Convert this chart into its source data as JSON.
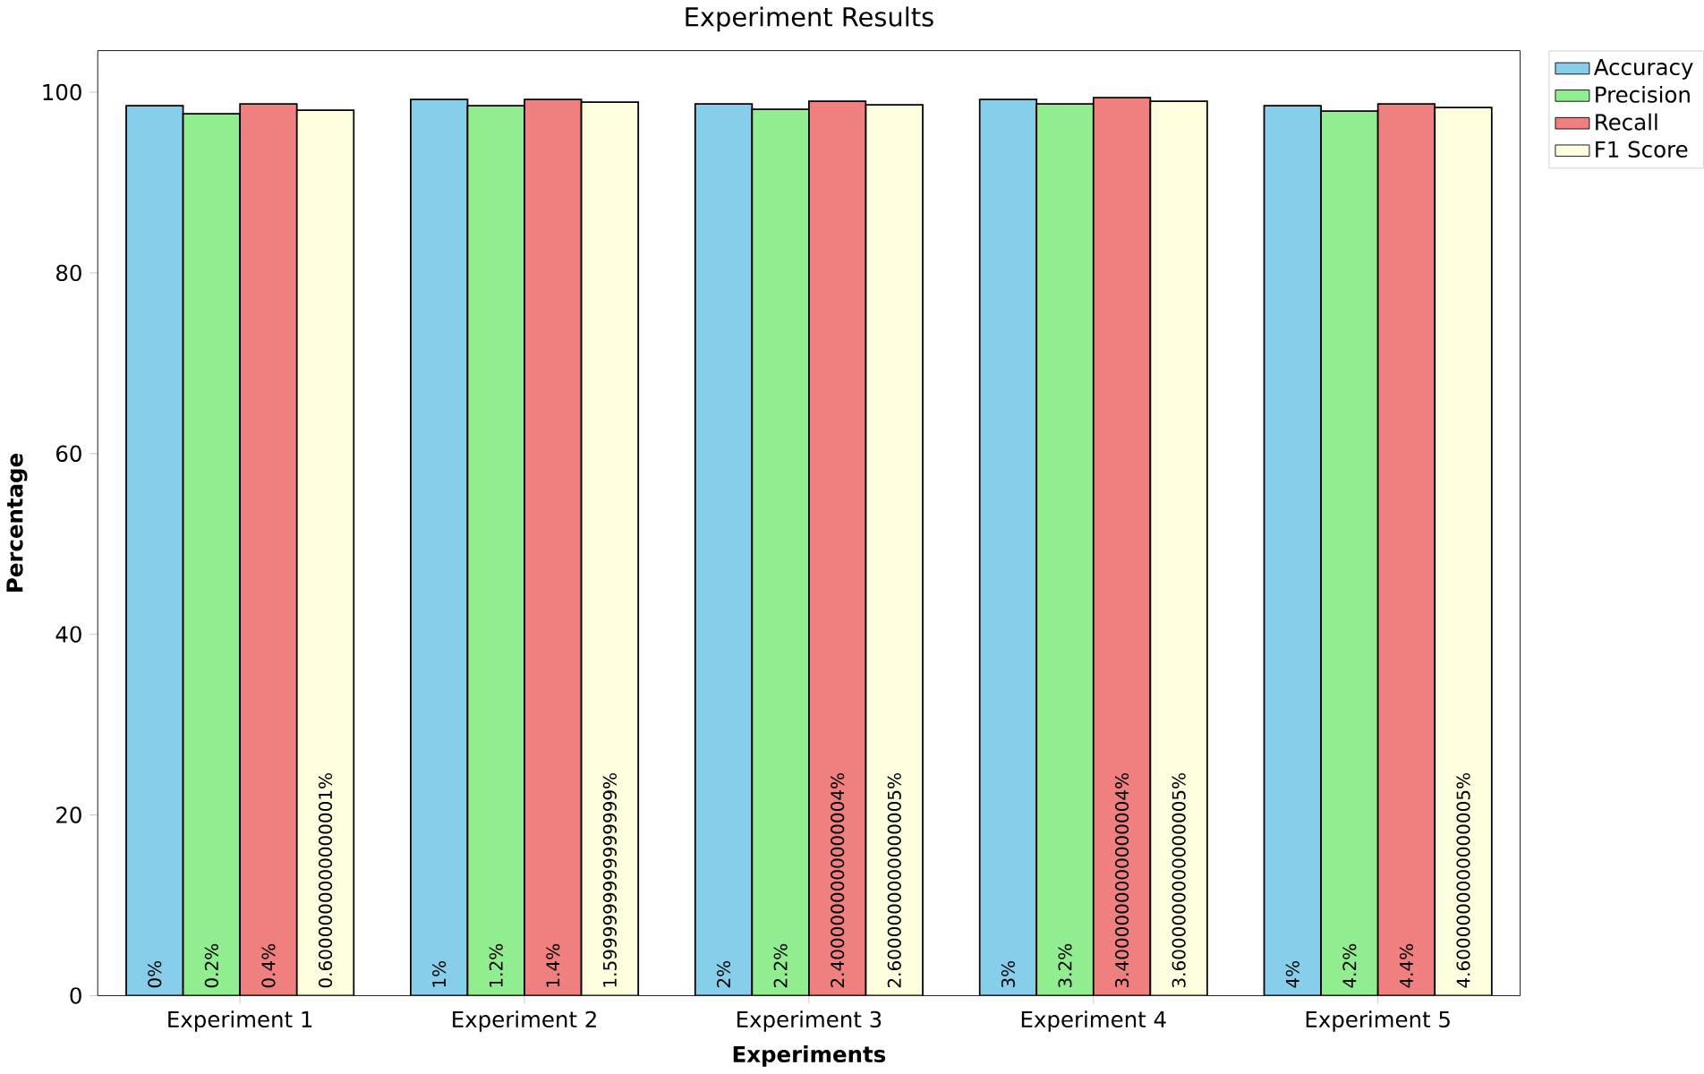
{
  "chart_data": {
    "type": "bar",
    "title": "Experiment Results",
    "xlabel": "Experiments",
    "ylabel": "Percentage",
    "categories": [
      "Experiment 1",
      "Experiment 2",
      "Experiment 3",
      "Experiment 4",
      "Experiment 5"
    ],
    "series": [
      {
        "name": "Accuracy",
        "color": "#87ceeb",
        "values": [
          98.5,
          99.2,
          98.7,
          99.2,
          98.5
        ]
      },
      {
        "name": "Precision",
        "color": "#90ee90",
        "values": [
          97.6,
          98.5,
          98.1,
          98.7,
          97.9
        ]
      },
      {
        "name": "Recall",
        "color": "#f08080",
        "values": [
          98.7,
          99.2,
          99.0,
          99.4,
          98.7
        ]
      },
      {
        "name": "F1 Score",
        "color": "#ffffe0",
        "values": [
          98.0,
          98.9,
          98.6,
          99.0,
          98.3
        ]
      }
    ],
    "ylim": [
      0,
      104.6
    ],
    "yticks": [
      0,
      20,
      40,
      60,
      80,
      100
    ],
    "legend": "top right",
    "annotations": [
      "0%",
      "0.2%",
      "0.4%",
      "0.6000000000000001%",
      "1%",
      "1.2%",
      "1.4%",
      "1.5999999999999999%",
      "2%",
      "2.2%",
      "2.4000000000000004%",
      "2.6000000000000005%",
      "3%",
      "3.2%",
      "3.4000000000000004%",
      "3.6000000000000005%",
      "4%",
      "4.2%",
      "4.4%",
      "4.6000000000000005%"
    ]
  }
}
